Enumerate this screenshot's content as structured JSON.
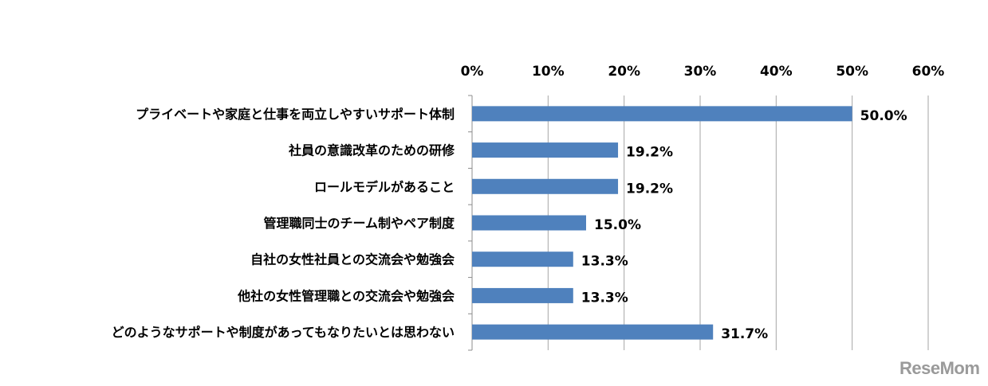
{
  "chart_data": {
    "type": "bar",
    "orientation": "horizontal",
    "categories": [
      "プライベートや家庭と仕事を両立しやすいサポート体制",
      "社員の意識改革のための研修",
      "ロールモデルがあること",
      "管理職同士のチーム制やペア制度",
      "自社の女性社員との交流会や勉強会",
      "他社の女性管理職との交流会や勉強会",
      "どのようなサポートや制度があってもなりたいとは思わない"
    ],
    "values": [
      50.0,
      19.2,
      19.2,
      15.0,
      13.3,
      13.3,
      31.7
    ],
    "value_labels": [
      "50.0%",
      "19.2%",
      "19.2%",
      "15.0%",
      "13.3%",
      "13.3%",
      "31.7%"
    ],
    "x_ticks": [
      "0%",
      "10%",
      "20%",
      "30%",
      "40%",
      "50%",
      "60%"
    ],
    "xlim": [
      0,
      60
    ],
    "axis_position": "top",
    "grid": true,
    "bar_color": "#4f81bd"
  },
  "watermark": "ReseMom"
}
